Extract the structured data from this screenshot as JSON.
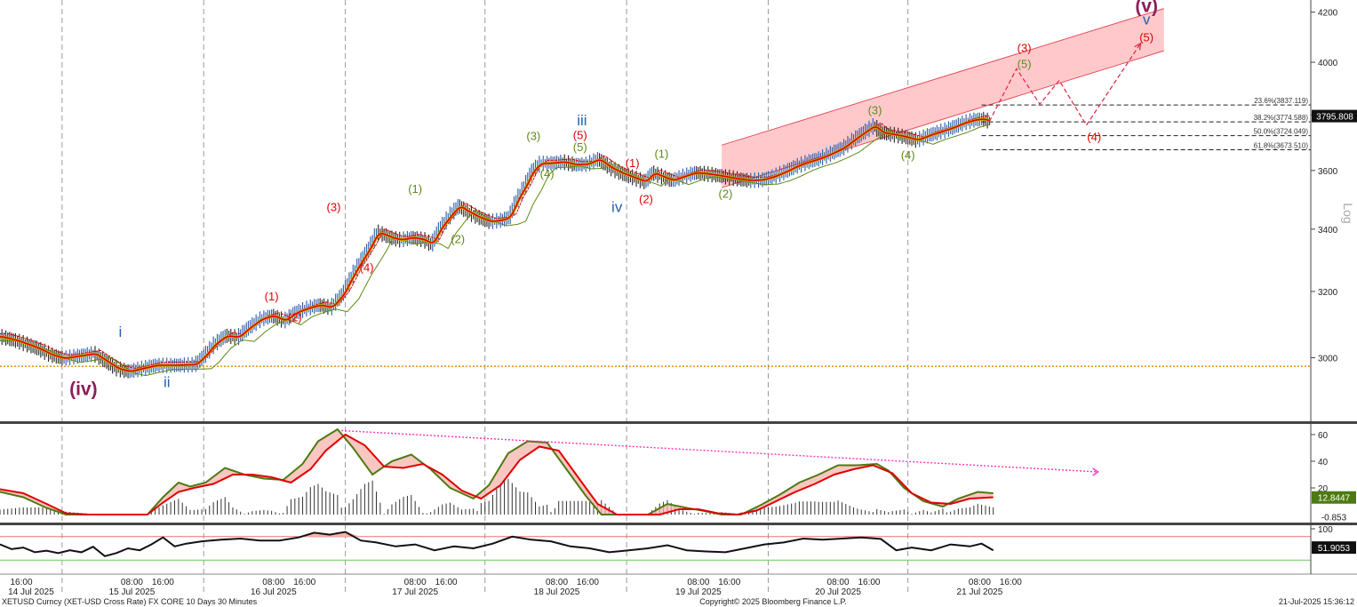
{
  "chart_data": {
    "type": "line",
    "title": "",
    "footer": {
      "left": "XETUSD Curncy (XET-USD Cross Rate) FX CORE 10 Days 30 Minutes",
      "center": "Copyright© 2025 Bloomberg Finance L.P.",
      "right": "21-Jul-2025 15:36:12"
    },
    "price_panel": {
      "scale": "log",
      "scale_label": "Log",
      "ylim": [
        2820,
        4250
      ],
      "yticks": [
        3000,
        3200,
        3400,
        3600,
        3800,
        4000,
        4200
      ],
      "last_price": "3795.808",
      "support_level": 2975,
      "x_range_bars": [
        0,
        510
      ],
      "price_series": [
        [
          0,
          3062
        ],
        [
          8,
          3050
        ],
        [
          18,
          3030
        ],
        [
          26,
          3008
        ],
        [
          32,
          2998
        ],
        [
          40,
          3005
        ],
        [
          48,
          3012
        ],
        [
          54,
          2990
        ],
        [
          60,
          2968
        ],
        [
          66,
          2960
        ],
        [
          72,
          2968
        ],
        [
          80,
          2978
        ],
        [
          90,
          2978
        ],
        [
          100,
          2980
        ],
        [
          104,
          3000
        ],
        [
          110,
          3040
        ],
        [
          116,
          3065
        ],
        [
          122,
          3060
        ],
        [
          128,
          3090
        ],
        [
          134,
          3115
        ],
        [
          140,
          3125
        ],
        [
          146,
          3110
        ],
        [
          152,
          3135
        ],
        [
          158,
          3148
        ],
        [
          164,
          3158
        ],
        [
          170,
          3150
        ],
        [
          176,
          3190
        ],
        [
          182,
          3260
        ],
        [
          186,
          3300
        ],
        [
          190,
          3340
        ],
        [
          194,
          3390
        ],
        [
          198,
          3380
        ],
        [
          202,
          3370
        ],
        [
          206,
          3365
        ],
        [
          212,
          3372
        ],
        [
          218,
          3365
        ],
        [
          222,
          3350
        ],
        [
          226,
          3400
        ],
        [
          232,
          3450
        ],
        [
          236,
          3478
        ],
        [
          240,
          3460
        ],
        [
          246,
          3440
        ],
        [
          252,
          3425
        ],
        [
          258,
          3430
        ],
        [
          262,
          3440
        ],
        [
          266,
          3500
        ],
        [
          270,
          3545
        ],
        [
          274,
          3600
        ],
        [
          278,
          3625
        ],
        [
          282,
          3625
        ],
        [
          290,
          3630
        ],
        [
          296,
          3620
        ],
        [
          302,
          3622
        ],
        [
          308,
          3640
        ],
        [
          314,
          3610
        ],
        [
          320,
          3590
        ],
        [
          326,
          3575
        ],
        [
          332,
          3560
        ],
        [
          336,
          3592
        ],
        [
          342,
          3575
        ],
        [
          346,
          3565
        ],
        [
          352,
          3580
        ],
        [
          358,
          3592
        ],
        [
          364,
          3588
        ],
        [
          370,
          3582
        ],
        [
          376,
          3575
        ],
        [
          382,
          3568
        ],
        [
          386,
          3565
        ],
        [
          392,
          3567
        ],
        [
          398,
          3578
        ],
        [
          404,
          3595
        ],
        [
          410,
          3615
        ],
        [
          416,
          3630
        ],
        [
          422,
          3642
        ],
        [
          428,
          3660
        ],
        [
          434,
          3680
        ],
        [
          440,
          3712
        ],
        [
          446,
          3742
        ],
        [
          450,
          3760
        ],
        [
          454,
          3735
        ],
        [
          460,
          3728
        ],
        [
          466,
          3720
        ],
        [
          472,
          3708
        ],
        [
          478,
          3725
        ],
        [
          484,
          3738
        ],
        [
          490,
          3752
        ],
        [
          496,
          3770
        ],
        [
          502,
          3782
        ],
        [
          506,
          3785
        ],
        [
          510,
          3776
        ]
      ],
      "moving_averages": [
        {
          "name": "",
          "color": "#e00000",
          "offset_bars": 4
        },
        {
          "name": "",
          "color": "#5e8a16",
          "offset_bars": 9
        }
      ],
      "channel": {
        "upper": [
          [
            372,
            3690
          ],
          [
            600,
            4215
          ]
        ],
        "lower": [
          [
            372,
            3540
          ],
          [
            600,
            4045
          ]
        ],
        "fill": "#ffc9cc"
      },
      "fib_levels": [
        {
          "label": "23.6%(3837.119)",
          "value": 3837.119
        },
        {
          "label": "38.2%(3774.588)",
          "value": 3774.588
        },
        {
          "label": "50.0%(3724.049)",
          "value": 3724.049
        },
        {
          "label": "61.8%(3673.510)",
          "value": 3673.51
        }
      ],
      "projection": [
        [
          510,
          3776
        ],
        [
          524,
          3975
        ],
        [
          536,
          3840
        ],
        [
          546,
          3930
        ],
        [
          560,
          3762
        ],
        [
          588,
          4075
        ]
      ],
      "wave_labels": [
        {
          "text": "(iv)",
          "x": 43,
          "price": 2893,
          "color": "#8c1e5a",
          "size": "xl"
        },
        {
          "text": "i",
          "x": 62,
          "price": 3062,
          "color": "#2860a8",
          "size": "lg"
        },
        {
          "text": "ii",
          "x": 86,
          "price": 2915,
          "color": "#2860a8",
          "size": "lg"
        },
        {
          "text": "(1)",
          "x": 140,
          "price": 3172,
          "color": "#e00000",
          "size": "md"
        },
        {
          "text": "(2)",
          "x": 152,
          "price": 3108,
          "color": "#e00000",
          "size": "md"
        },
        {
          "text": "(3)",
          "x": 172,
          "price": 3460,
          "color": "#e00000",
          "size": "md"
        },
        {
          "text": "(4)",
          "x": 189,
          "price": 3262,
          "color": "#e00000",
          "size": "md"
        },
        {
          "text": "(1)",
          "x": 214,
          "price": 3522,
          "color": "#5e8a16",
          "size": "md"
        },
        {
          "text": "(2)",
          "x": 236,
          "price": 3355,
          "color": "#5e8a16",
          "size": "md"
        },
        {
          "text": "(3)",
          "x": 275,
          "price": 3708,
          "color": "#5e8a16",
          "size": "md"
        },
        {
          "text": "(4)",
          "x": 282,
          "price": 3575,
          "color": "#5e8a16",
          "size": "md"
        },
        {
          "text": "(5)",
          "x": 299,
          "price": 3668,
          "color": "#5e8a16",
          "size": "md"
        },
        {
          "text": "(5)",
          "x": 299,
          "price": 3712,
          "color": "#e00000",
          "size": "md"
        },
        {
          "text": "iii",
          "x": 300,
          "price": 3762,
          "color": "#2860a8",
          "size": "lg"
        },
        {
          "text": "iv",
          "x": 318,
          "price": 3458,
          "color": "#2860a8",
          "size": "lg"
        },
        {
          "text": "(1)",
          "x": 326,
          "price": 3612,
          "color": "#e00000",
          "size": "md"
        },
        {
          "text": "(2)",
          "x": 333,
          "price": 3488,
          "color": "#e00000",
          "size": "md"
        },
        {
          "text": "(1)",
          "x": 341,
          "price": 3645,
          "color": "#5e8a16",
          "size": "md"
        },
        {
          "text": "(2)",
          "x": 374,
          "price": 3505,
          "color": "#5e8a16",
          "size": "md"
        },
        {
          "text": "(3)",
          "x": 451,
          "price": 3802,
          "color": "#5e8a16",
          "size": "md"
        },
        {
          "text": "(4)",
          "x": 468,
          "price": 3640,
          "color": "#5e8a16",
          "size": "md"
        },
        {
          "text": "(5)",
          "x": 528,
          "price": 3978,
          "color": "#5e8a16",
          "size": "md"
        },
        {
          "text": "(3)",
          "x": 528,
          "price": 4040,
          "color": "#e00000",
          "size": "md"
        },
        {
          "text": "(4)",
          "x": 564,
          "price": 3705,
          "color": "#e00000",
          "size": "md"
        },
        {
          "text": "(5)",
          "x": 591,
          "price": 4082,
          "color": "#e00000",
          "size": "md"
        },
        {
          "text": "v",
          "x": 591,
          "price": 4150,
          "color": "#2860a8",
          "size": "lg"
        },
        {
          "text": "(v)",
          "x": 591,
          "price": 4200,
          "color": "#8c1e5a",
          "size": "xl"
        }
      ]
    },
    "momentum_panel": {
      "ylim": [
        -6,
        68
      ],
      "yticks": [
        20,
        40,
        60
      ],
      "values": [
        "12.8447",
        "-0.853"
      ],
      "fast": [
        [
          0,
          17
        ],
        [
          12,
          13
        ],
        [
          24,
          5
        ],
        [
          34,
          0
        ],
        [
          46,
          0
        ],
        [
          56,
          0
        ],
        [
          66,
          0
        ],
        [
          76,
          0
        ],
        [
          84,
          13
        ],
        [
          92,
          24
        ],
        [
          98,
          21
        ],
        [
          106,
          24
        ],
        [
          116,
          35
        ],
        [
          126,
          30
        ],
        [
          136,
          27
        ],
        [
          146,
          26
        ],
        [
          156,
          38
        ],
        [
          164,
          55
        ],
        [
          174,
          64
        ],
        [
          182,
          50
        ],
        [
          192,
          30
        ],
        [
          202,
          40
        ],
        [
          212,
          45
        ],
        [
          222,
          34
        ],
        [
          232,
          20
        ],
        [
          244,
          12
        ],
        [
          252,
          22
        ],
        [
          262,
          46
        ],
        [
          272,
          55
        ],
        [
          282,
          54
        ],
        [
          292,
          34
        ],
        [
          302,
          14
        ],
        [
          310,
          0
        ],
        [
          322,
          0
        ],
        [
          334,
          0
        ],
        [
          344,
          8
        ],
        [
          354,
          5
        ],
        [
          362,
          3
        ],
        [
          372,
          0
        ],
        [
          382,
          0
        ],
        [
          392,
          7
        ],
        [
          402,
          15
        ],
        [
          412,
          24
        ],
        [
          422,
          30
        ],
        [
          432,
          37
        ],
        [
          442,
          37
        ],
        [
          452,
          38
        ],
        [
          458,
          33
        ],
        [
          466,
          20
        ],
        [
          476,
          10
        ],
        [
          486,
          6
        ],
        [
          494,
          12
        ],
        [
          504,
          17
        ],
        [
          512,
          16
        ]
      ],
      "slow": [
        [
          0,
          19
        ],
        [
          12,
          16
        ],
        [
          24,
          8
        ],
        [
          34,
          1
        ],
        [
          46,
          0
        ],
        [
          56,
          0
        ],
        [
          66,
          0
        ],
        [
          76,
          0
        ],
        [
          84,
          9
        ],
        [
          92,
          17
        ],
        [
          100,
          20
        ],
        [
          110,
          23
        ],
        [
          120,
          30
        ],
        [
          130,
          30
        ],
        [
          140,
          28
        ],
        [
          150,
          24
        ],
        [
          160,
          34
        ],
        [
          168,
          48
        ],
        [
          178,
          60
        ],
        [
          188,
          52
        ],
        [
          198,
          36
        ],
        [
          208,
          35
        ],
        [
          218,
          38
        ],
        [
          228,
          30
        ],
        [
          238,
          18
        ],
        [
          248,
          12
        ],
        [
          258,
          22
        ],
        [
          268,
          41
        ],
        [
          278,
          51
        ],
        [
          288,
          48
        ],
        [
          298,
          28
        ],
        [
          308,
          8
        ],
        [
          318,
          0
        ],
        [
          330,
          0
        ],
        [
          340,
          0
        ],
        [
          350,
          4
        ],
        [
          360,
          4
        ],
        [
          370,
          1
        ],
        [
          380,
          0
        ],
        [
          390,
          3
        ],
        [
          400,
          10
        ],
        [
          410,
          17
        ],
        [
          420,
          23
        ],
        [
          430,
          30
        ],
        [
          440,
          34
        ],
        [
          450,
          37
        ],
        [
          460,
          31
        ],
        [
          470,
          16
        ],
        [
          480,
          9
        ],
        [
          490,
          8
        ],
        [
          500,
          12
        ],
        [
          512,
          13
        ]
      ],
      "divergence": [
        [
          176,
          63
        ],
        [
          566,
          32
        ]
      ]
    },
    "oscillator_panel": {
      "ylim": [
        0,
        100
      ],
      "ytick": 100,
      "value": "51.9053",
      "upper_band": 80,
      "lower_band": 20,
      "series": [
        [
          0,
          60
        ],
        [
          6,
          48
        ],
        [
          12,
          52
        ],
        [
          18,
          40
        ],
        [
          24,
          44
        ],
        [
          30,
          38
        ],
        [
          36,
          45
        ],
        [
          42,
          40
        ],
        [
          48,
          54
        ],
        [
          54,
          30
        ],
        [
          60,
          38
        ],
        [
          66,
          50
        ],
        [
          72,
          45
        ],
        [
          78,
          60
        ],
        [
          84,
          78
        ],
        [
          90,
          55
        ],
        [
          96,
          62
        ],
        [
          104,
          68
        ],
        [
          114,
          72
        ],
        [
          124,
          75
        ],
        [
          134,
          70
        ],
        [
          144,
          70
        ],
        [
          154,
          78
        ],
        [
          162,
          90
        ],
        [
          170,
          85
        ],
        [
          178,
          92
        ],
        [
          186,
          70
        ],
        [
          194,
          65
        ],
        [
          204,
          55
        ],
        [
          214,
          60
        ],
        [
          224,
          45
        ],
        [
          234,
          55
        ],
        [
          244,
          50
        ],
        [
          254,
          62
        ],
        [
          264,
          80
        ],
        [
          274,
          72
        ],
        [
          284,
          68
        ],
        [
          294,
          55
        ],
        [
          304,
          50
        ],
        [
          314,
          40
        ],
        [
          324,
          45
        ],
        [
          334,
          50
        ],
        [
          344,
          58
        ],
        [
          354,
          45
        ],
        [
          364,
          42
        ],
        [
          374,
          40
        ],
        [
          384,
          50
        ],
        [
          394,
          60
        ],
        [
          404,
          65
        ],
        [
          414,
          75
        ],
        [
          424,
          72
        ],
        [
          434,
          75
        ],
        [
          444,
          78
        ],
        [
          454,
          74
        ],
        [
          462,
          45
        ],
        [
          470,
          52
        ],
        [
          480,
          45
        ],
        [
          490,
          60
        ],
        [
          500,
          55
        ],
        [
          506,
          62
        ],
        [
          512,
          45
        ]
      ]
    },
    "x_axis": {
      "top_row": [
        "16:00",
        "08:00",
        "16:00",
        "08:00",
        "16:00",
        "08:00",
        "16:00",
        "08:00",
        "16:00",
        "08:00",
        "16:00",
        "08:00",
        "16:00",
        "08:00",
        "16:00"
      ],
      "bottom_row": [
        "14 Jul 2025",
        "15 Jul 2025",
        "16 Jul 2025",
        "17 Jul 2025",
        "18 Jul 2025",
        "19 Jul 2025",
        "20 Jul 2025",
        "21 Jul 2025"
      ]
    }
  }
}
